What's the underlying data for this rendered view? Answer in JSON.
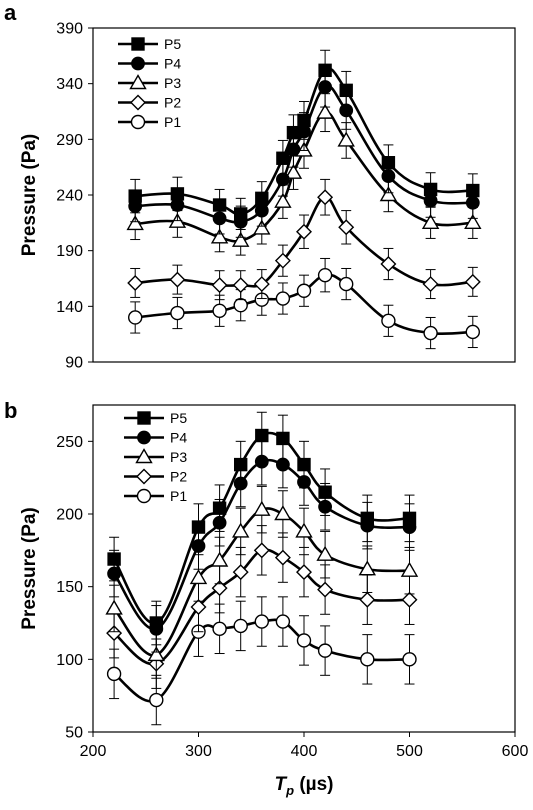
{
  "chart_data": [
    {
      "type": "line",
      "panel_label": "a",
      "title": "",
      "xlabel": "",
      "ylabel": "Pressure (Pa)",
      "ylim": [
        90,
        390
      ],
      "yticks": [
        90,
        140,
        190,
        240,
        290,
        340,
        390
      ],
      "xlim": [
        200,
        600
      ],
      "grid": false,
      "legend": "top-left",
      "series": [
        {
          "name": "P5",
          "marker": "square-filled",
          "x": [
            240,
            280,
            320,
            340,
            360,
            380,
            390,
            400,
            420,
            440,
            480,
            520,
            560
          ],
          "y": [
            239,
            241,
            231,
            223,
            237,
            273,
            296,
            307,
            352,
            334,
            269,
            245,
            244
          ],
          "err": [
            15,
            15,
            14,
            14,
            15,
            16,
            16,
            17,
            18,
            17,
            16,
            15,
            15
          ]
        },
        {
          "name": "P4",
          "marker": "circle-filled",
          "x": [
            240,
            280,
            320,
            340,
            360,
            380,
            390,
            400,
            420,
            440,
            480,
            520,
            560
          ],
          "y": [
            230,
            231,
            219,
            216,
            226,
            254,
            281,
            297,
            337,
            316,
            257,
            235,
            233
          ],
          "err": [
            14,
            14,
            14,
            14,
            14,
            15,
            16,
            17,
            18,
            17,
            15,
            15,
            14
          ]
        },
        {
          "name": "P3",
          "marker": "triangle-open",
          "x": [
            240,
            280,
            320,
            340,
            360,
            380,
            390,
            400,
            420,
            440,
            480,
            520,
            560
          ],
          "y": [
            214,
            216,
            202,
            199,
            210,
            234,
            260,
            280,
            314,
            289,
            240,
            215,
            215
          ],
          "err": [
            14,
            14,
            13,
            13,
            14,
            15,
            15,
            16,
            17,
            16,
            15,
            14,
            14
          ]
        },
        {
          "name": "P2",
          "marker": "diamond-open",
          "x": [
            240,
            280,
            320,
            340,
            360,
            380,
            400,
            420,
            440,
            480,
            520,
            560
          ],
          "y": [
            161,
            164,
            159,
            159,
            160,
            181,
            207,
            238,
            211,
            178,
            160,
            162
          ],
          "err": [
            13,
            13,
            13,
            13,
            13,
            14,
            15,
            16,
            15,
            14,
            13,
            13
          ]
        },
        {
          "name": "P1",
          "marker": "circle-open",
          "x": [
            240,
            280,
            320,
            340,
            360,
            380,
            400,
            420,
            440,
            480,
            520,
            560
          ],
          "y": [
            130,
            134,
            136,
            141,
            146,
            147,
            154,
            168,
            160,
            127,
            116,
            117
          ],
          "err": [
            14,
            14,
            14,
            14,
            14,
            14,
            14,
            15,
            14,
            14,
            14,
            14
          ]
        }
      ]
    },
    {
      "type": "line",
      "panel_label": "b",
      "title": "",
      "xlabel": "Tp (µs)",
      "xlabel_main": "T",
      "xlabel_sub": "p",
      "xlabel_unit": " (µs)",
      "ylabel": "Pressure (Pa)",
      "xlim": [
        200,
        600
      ],
      "xticks": [
        200,
        300,
        400,
        500,
        600
      ],
      "ylim": [
        50,
        275
      ],
      "yticks": [
        50,
        100,
        150,
        200,
        250
      ],
      "grid": false,
      "legend": "top-left",
      "series": [
        {
          "name": "P5",
          "marker": "square-filled",
          "x": [
            220,
            260,
            300,
            320,
            340,
            360,
            380,
            400,
            420,
            460,
            500
          ],
          "y": [
            169,
            125,
            191,
            204,
            234,
            254,
            252,
            234,
            215,
            197,
            197
          ],
          "err": [
            15,
            15,
            16,
            16,
            16,
            16,
            16,
            16,
            16,
            16,
            16
          ]
        },
        {
          "name": "P4",
          "marker": "circle-filled",
          "x": [
            220,
            260,
            300,
            320,
            340,
            360,
            380,
            400,
            420,
            460,
            500
          ],
          "y": [
            159,
            121,
            178,
            194,
            221,
            236,
            234,
            222,
            205,
            192,
            191
          ],
          "err": [
            16,
            16,
            16,
            16,
            16,
            16,
            16,
            16,
            16,
            16,
            16
          ]
        },
        {
          "name": "P3",
          "marker": "triangle-open",
          "x": [
            220,
            260,
            300,
            320,
            340,
            360,
            380,
            400,
            420,
            460,
            500
          ],
          "y": [
            135,
            103,
            156,
            168,
            188,
            203,
            200,
            188,
            172,
            162,
            161
          ],
          "err": [
            16,
            16,
            16,
            16,
            16,
            16,
            16,
            16,
            16,
            16,
            16
          ]
        },
        {
          "name": "P2",
          "marker": "diamond-open",
          "x": [
            220,
            260,
            300,
            320,
            340,
            360,
            380,
            400,
            420,
            460,
            500
          ],
          "y": [
            118,
            97,
            136,
            149,
            160,
            175,
            170,
            160,
            148,
            141,
            141
          ],
          "err": [
            17,
            17,
            17,
            17,
            17,
            17,
            17,
            17,
            17,
            17,
            17
          ]
        },
        {
          "name": "P1",
          "marker": "circle-open",
          "x": [
            220,
            260,
            300,
            320,
            340,
            360,
            380,
            400,
            420,
            460,
            500
          ],
          "y": [
            90,
            72,
            119,
            121,
            123,
            126,
            126,
            113,
            106,
            100,
            100
          ],
          "err": [
            17,
            17,
            17,
            17,
            17,
            17,
            17,
            17,
            17,
            17,
            17
          ]
        }
      ]
    }
  ]
}
